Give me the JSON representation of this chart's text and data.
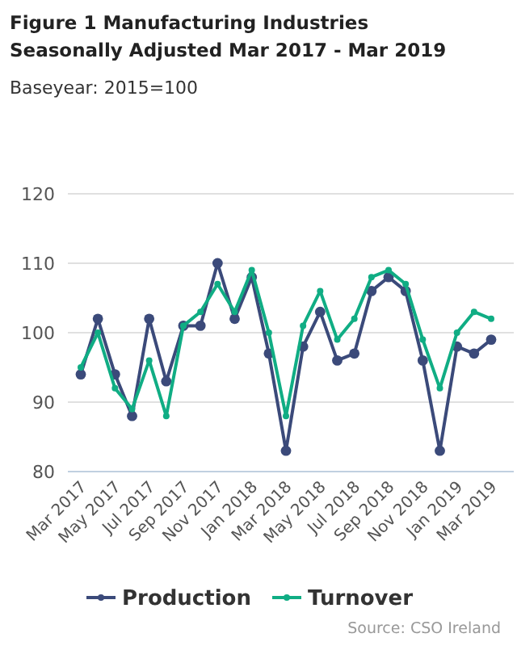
{
  "chart_data": {
    "type": "line",
    "title": "Figure 1 Manufacturing Industries Seasonally Adjusted Mar 2017 - Mar 2019",
    "subtitle": "Baseyear: 2015=100",
    "annotations": [
      "Source: CSO Ireland"
    ],
    "categories": [
      "Mar 2017",
      null,
      "May 2017",
      null,
      "Jul 2017",
      null,
      "Sep 2017",
      null,
      "Nov 2017",
      null,
      "Jan 2018",
      null,
      "Mar 2018",
      null,
      "May 2018",
      null,
      "Jul 2018",
      null,
      "Sep 2018",
      null,
      "Nov 2018",
      null,
      "Jan 2019",
      null,
      "Mar 2019"
    ],
    "series": [
      {
        "name": "Production",
        "color": "#3b4a7a",
        "values": [
          94,
          102,
          94,
          88,
          102,
          93,
          101,
          101,
          110,
          102,
          108,
          97,
          83,
          98,
          103,
          96,
          97,
          106,
          108,
          106,
          96,
          83,
          98,
          97,
          99
        ]
      },
      {
        "name": "Turnover",
        "color": "#10ad84",
        "values": [
          95,
          100,
          92,
          89,
          96,
          88,
          101,
          103,
          107,
          103,
          109,
          100,
          88,
          101,
          106,
          99,
          102,
          108,
          109,
          107,
          99,
          92,
          100,
          103,
          102
        ]
      }
    ],
    "ylim": [
      80,
      120
    ],
    "yticks": [
      80,
      90,
      100,
      110,
      120
    ],
    "grid": "y",
    "legend": "bottom",
    "marker": "circle",
    "line_style": "solid"
  }
}
